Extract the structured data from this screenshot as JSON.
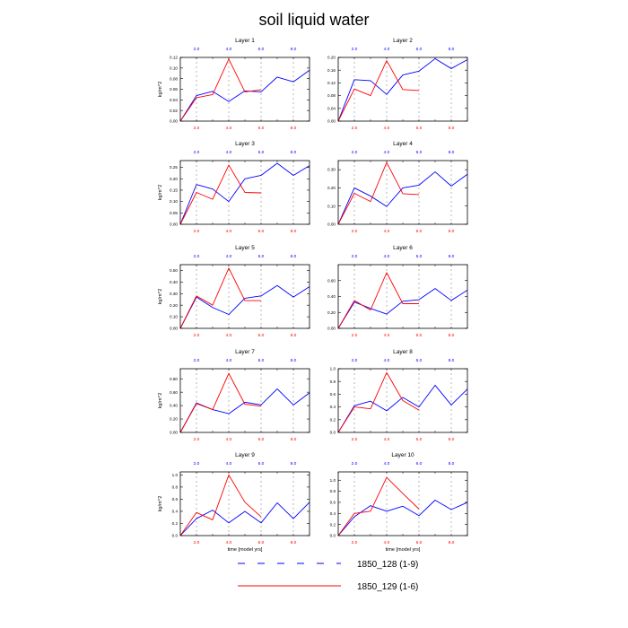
{
  "figure_title": "soil liquid water",
  "y_unit": "kg/m^2",
  "x_label": "time [model yrs]",
  "colors": {
    "series_a": "#0000ff",
    "series_b": "#ff0000",
    "axis": "#000000",
    "grid": "#888888"
  },
  "legend": [
    {
      "label": "1850_128 (1-9)",
      "style": "dashed",
      "color": "#0000ff"
    },
    {
      "label": "1850_129 (1-6)",
      "style": "solid",
      "color": "#ff0000"
    }
  ],
  "chart_data": [
    {
      "type": "line",
      "title": "Layer 1",
      "xlabel": "",
      "ylabel": "kg/m^2",
      "xlim": [
        1,
        9
      ],
      "ylim": [
        0,
        0.12
      ],
      "yticks": [
        "0.00",
        "0.02",
        "0.04",
        "0.06",
        "0.08",
        "0.10",
        "0.12"
      ],
      "top_ticks": [
        "2.0",
        "4.0",
        "6.0",
        "8.0"
      ],
      "bottom_ticks": [
        "2.0",
        "4.0",
        "6.0",
        "8.0"
      ],
      "grid_x": [
        2,
        4,
        6,
        8
      ],
      "series": [
        {
          "name": "1850_128 (1-9)",
          "x": [
            1,
            2,
            3,
            4,
            5,
            6,
            7,
            8,
            9
          ],
          "values": [
            0.0,
            0.048,
            0.056,
            0.037,
            0.057,
            0.055,
            0.083,
            0.074,
            0.096
          ]
        },
        {
          "name": "1850_129 (1-6)",
          "x": [
            1,
            2,
            3,
            4,
            5,
            6
          ],
          "values": [
            0.0,
            0.044,
            0.05,
            0.117,
            0.055,
            0.059
          ]
        }
      ]
    },
    {
      "type": "line",
      "title": "Layer 2",
      "xlabel": "",
      "ylabel": "",
      "xlim": [
        1,
        9
      ],
      "ylim": [
        0,
        0.2
      ],
      "yticks": [
        "0.00",
        "0.04",
        "0.08",
        "0.12",
        "0.16",
        "0.20"
      ],
      "top_ticks": [
        "2.0",
        "4.0",
        "6.0",
        "8.0"
      ],
      "bottom_ticks": [
        "2.0",
        "4.0",
        "6.0",
        "8.0"
      ],
      "grid_x": [
        2,
        4,
        6,
        8
      ],
      "series": [
        {
          "name": "1850_128 (1-9)",
          "x": [
            1,
            2,
            3,
            4,
            5,
            6,
            7,
            8,
            9
          ],
          "values": [
            0.0,
            0.13,
            0.127,
            0.084,
            0.145,
            0.157,
            0.196,
            0.165,
            0.193
          ]
        },
        {
          "name": "1850_129 (1-6)",
          "x": [
            1,
            2,
            3,
            4,
            5,
            6
          ],
          "values": [
            0.0,
            0.101,
            0.08,
            0.19,
            0.099,
            0.096
          ]
        }
      ]
    },
    {
      "type": "line",
      "title": "Layer 3",
      "xlabel": "",
      "ylabel": "kg/m^2",
      "xlim": [
        1,
        9
      ],
      "ylim": [
        0,
        0.28
      ],
      "yticks": [
        "0.00",
        "0.05",
        "0.10",
        "0.15",
        "0.20",
        "0.25"
      ],
      "top_ticks": [
        "2.0",
        "4.0",
        "6.0",
        "8.0"
      ],
      "bottom_ticks": [
        "2.0",
        "4.0",
        "6.0",
        "8.0"
      ],
      "grid_x": [
        2,
        4,
        6,
        8
      ],
      "series": [
        {
          "name": "1850_128 (1-9)",
          "x": [
            1,
            2,
            3,
            4,
            5,
            6,
            7,
            8,
            9
          ],
          "values": [
            0.0,
            0.175,
            0.155,
            0.1,
            0.2,
            0.215,
            0.268,
            0.215,
            0.258
          ]
        },
        {
          "name": "1850_129 (1-6)",
          "x": [
            1,
            2,
            3,
            4,
            5,
            6
          ],
          "values": [
            0.0,
            0.14,
            0.11,
            0.26,
            0.14,
            0.138
          ]
        }
      ]
    },
    {
      "type": "line",
      "title": "Layer 4",
      "xlabel": "",
      "ylabel": "",
      "xlim": [
        1,
        9
      ],
      "ylim": [
        0,
        0.35
      ],
      "yticks": [
        "0.00",
        "0.10",
        "0.20",
        "0.30"
      ],
      "top_ticks": [
        "2.0",
        "4.0",
        "6.0",
        "8.0"
      ],
      "bottom_ticks": [
        "2.0",
        "4.0",
        "6.0",
        "8.0"
      ],
      "grid_x": [
        2,
        4,
        6,
        8
      ],
      "series": [
        {
          "name": "1850_128 (1-9)",
          "x": [
            1,
            2,
            3,
            4,
            5,
            6,
            7,
            8,
            9
          ],
          "values": [
            0.0,
            0.2,
            0.155,
            0.098,
            0.2,
            0.215,
            0.288,
            0.21,
            0.275
          ]
        },
        {
          "name": "1850_129 (1-6)",
          "x": [
            1,
            2,
            3,
            4,
            5,
            6
          ],
          "values": [
            0.0,
            0.17,
            0.125,
            0.34,
            0.168,
            0.163
          ]
        }
      ]
    },
    {
      "type": "line",
      "title": "Layer 5",
      "xlabel": "",
      "ylabel": "kg/m^2",
      "xlim": [
        1,
        9
      ],
      "ylim": [
        0,
        0.55
      ],
      "yticks": [
        "0.00",
        "0.10",
        "0.20",
        "0.30",
        "0.40",
        "0.50"
      ],
      "top_ticks": [
        "2.0",
        "4.0",
        "6.0",
        "8.0"
      ],
      "bottom_ticks": [
        "2.0",
        "4.0",
        "6.0",
        "8.0"
      ],
      "grid_x": [
        2,
        4,
        6,
        8
      ],
      "series": [
        {
          "name": "1850_128 (1-9)",
          "x": [
            1,
            2,
            3,
            4,
            5,
            6,
            7,
            8,
            9
          ],
          "values": [
            0.0,
            0.27,
            0.18,
            0.12,
            0.26,
            0.28,
            0.37,
            0.27,
            0.36
          ]
        },
        {
          "name": "1850_129 (1-6)",
          "x": [
            1,
            2,
            3,
            4,
            5,
            6
          ],
          "values": [
            0.0,
            0.28,
            0.2,
            0.52,
            0.24,
            0.24
          ]
        }
      ]
    },
    {
      "type": "line",
      "title": "Layer 6",
      "xlabel": "",
      "ylabel": "",
      "xlim": [
        1,
        9
      ],
      "ylim": [
        0,
        0.8
      ],
      "yticks": [
        "0.00",
        "0.20",
        "0.40",
        "0.60"
      ],
      "top_ticks": [
        "2.0",
        "4.0",
        "6.0",
        "8.0"
      ],
      "bottom_ticks": [
        "2.0",
        "4.0",
        "6.0",
        "8.0"
      ],
      "grid_x": [
        2,
        4,
        6,
        8
      ],
      "series": [
        {
          "name": "1850_128 (1-9)",
          "x": [
            1,
            2,
            3,
            4,
            5,
            6,
            7,
            8,
            9
          ],
          "values": [
            0.0,
            0.33,
            0.25,
            0.18,
            0.34,
            0.36,
            0.5,
            0.35,
            0.48
          ]
        },
        {
          "name": "1850_129 (1-6)",
          "x": [
            1,
            2,
            3,
            4,
            5,
            6
          ],
          "values": [
            0.0,
            0.35,
            0.23,
            0.7,
            0.31,
            0.31
          ]
        }
      ]
    },
    {
      "type": "line",
      "title": "Layer 7",
      "xlabel": "",
      "ylabel": "kg/m^2",
      "xlim": [
        1,
        9
      ],
      "ylim": [
        0,
        0.95
      ],
      "yticks": [
        "0.00",
        "0.20",
        "0.40",
        "0.60",
        "0.80"
      ],
      "top_ticks": [
        "2.0",
        "4.0",
        "6.0",
        "8.0"
      ],
      "bottom_ticks": [
        "2.0",
        "4.0",
        "6.0",
        "8.0"
      ],
      "grid_x": [
        2,
        4,
        6,
        8
      ],
      "series": [
        {
          "name": "1850_128 (1-9)",
          "x": [
            1,
            2,
            3,
            4,
            5,
            6,
            7,
            8,
            9
          ],
          "values": [
            0.0,
            0.44,
            0.34,
            0.28,
            0.45,
            0.41,
            0.65,
            0.41,
            0.59
          ]
        },
        {
          "name": "1850_129 (1-6)",
          "x": [
            1,
            2,
            3,
            4,
            5,
            6
          ],
          "values": [
            0.0,
            0.43,
            0.34,
            0.88,
            0.42,
            0.39
          ]
        }
      ]
    },
    {
      "type": "line",
      "title": "Layer 8",
      "xlabel": "",
      "ylabel": "",
      "xlim": [
        1,
        9
      ],
      "ylim": [
        0,
        1.0
      ],
      "yticks": [
        "0.0",
        "0.2",
        "0.4",
        "0.6",
        "0.8",
        "1.0"
      ],
      "top_ticks": [
        "2.0",
        "4.0",
        "6.0",
        "8.0"
      ],
      "bottom_ticks": [
        "2.0",
        "4.0",
        "6.0",
        "8.0"
      ],
      "grid_x": [
        2,
        4,
        6,
        8
      ],
      "series": [
        {
          "name": "1850_128 (1-9)",
          "x": [
            1,
            2,
            3,
            4,
            5,
            6,
            7,
            8,
            9
          ],
          "values": [
            0.0,
            0.42,
            0.49,
            0.34,
            0.55,
            0.4,
            0.74,
            0.43,
            0.68
          ]
        },
        {
          "name": "1850_129 (1-6)",
          "x": [
            1,
            2,
            3,
            4,
            5,
            6
          ],
          "values": [
            0.0,
            0.4,
            0.37,
            0.94,
            0.5,
            0.35
          ]
        }
      ]
    },
    {
      "type": "line",
      "title": "Layer 9",
      "xlabel": "time [model yrs]",
      "ylabel": "kg/m^2",
      "xlim": [
        1,
        9
      ],
      "ylim": [
        0,
        1.05
      ],
      "yticks": [
        "0.0",
        "0.2",
        "0.4",
        "0.6",
        "0.8",
        "1.0"
      ],
      "top_ticks": [
        "2.0",
        "4.0",
        "6.0",
        "8.0"
      ],
      "bottom_ticks": [
        "2.0",
        "4.0",
        "6.0",
        "8.0"
      ],
      "grid_x": [
        2,
        4,
        6,
        8
      ],
      "series": [
        {
          "name": "1850_128 (1-9)",
          "x": [
            1,
            2,
            3,
            4,
            5,
            6,
            7,
            8,
            9
          ],
          "values": [
            0.0,
            0.28,
            0.42,
            0.21,
            0.4,
            0.21,
            0.54,
            0.28,
            0.55
          ]
        },
        {
          "name": "1850_129 (1-6)",
          "x": [
            1,
            2,
            3,
            4,
            5,
            6
          ],
          "values": [
            0.0,
            0.38,
            0.26,
            1.0,
            0.55,
            0.31
          ]
        }
      ]
    },
    {
      "type": "line",
      "title": "Layer 10",
      "xlabel": "time [model yrs]",
      "ylabel": "",
      "xlim": [
        1,
        9
      ],
      "ylim": [
        0,
        1.15
      ],
      "yticks": [
        "0.0",
        "0.2",
        "0.4",
        "0.6",
        "0.8",
        "1.0"
      ],
      "top_ticks": [
        "2.0",
        "4.0",
        "6.0",
        "8.0"
      ],
      "bottom_ticks": [
        "2.0",
        "4.0",
        "6.0",
        "8.0"
      ],
      "grid_x": [
        2,
        4,
        6,
        8
      ],
      "series": [
        {
          "name": "1850_128 (1-9)",
          "x": [
            1,
            2,
            3,
            4,
            5,
            6,
            7,
            8,
            9
          ],
          "values": [
            0.0,
            0.34,
            0.54,
            0.44,
            0.53,
            0.36,
            0.64,
            0.47,
            0.6
          ]
        },
        {
          "name": "1850_129 (1-6)",
          "x": [
            1,
            2,
            3,
            4,
            5,
            6
          ],
          "values": [
            0.0,
            0.4,
            0.44,
            1.05,
            0.76,
            0.48
          ]
        }
      ]
    }
  ]
}
